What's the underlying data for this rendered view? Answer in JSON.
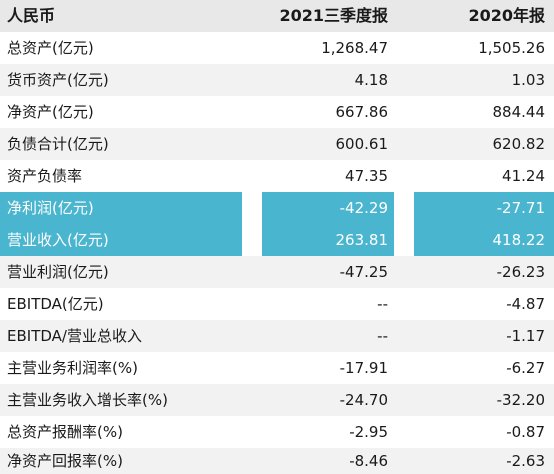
{
  "header": {
    "label": "人民币",
    "col1": "2021三季度报",
    "col2": "2020年报"
  },
  "rows": [
    {
      "label": "总资产(亿元)",
      "v1": "1,268.47",
      "v2": "1,505.26"
    },
    {
      "label": "货币资产(亿元)",
      "v1": "4.18",
      "v2": "1.03"
    },
    {
      "label": "净资产(亿元)",
      "v1": "667.86",
      "v2": "884.44"
    },
    {
      "label": "负债合计(亿元)",
      "v1": "600.61",
      "v2": "620.82"
    },
    {
      "label": "资产负债率",
      "v1": "47.35",
      "v2": "41.24"
    },
    {
      "label": "净利润(亿元)",
      "v1": "-42.29",
      "v2": "-27.71"
    },
    {
      "label": "营业收入(亿元)",
      "v1": "263.81",
      "v2": "418.22"
    },
    {
      "label": "营业利润(亿元)",
      "v1": "-47.25",
      "v2": "-26.23"
    },
    {
      "label": "EBITDA(亿元)",
      "v1": "--",
      "v2": "-4.87"
    },
    {
      "label": "EBITDA/营业总收入",
      "v1": "--",
      "v2": "-1.17"
    },
    {
      "label": "主营业务利润率(%)",
      "v1": "-17.91",
      "v2": "-6.27"
    },
    {
      "label": "主营业务收入增长率(%)",
      "v1": "-24.70",
      "v2": "-32.20"
    },
    {
      "label": "总资产报酬率(%)",
      "v1": "-2.95",
      "v2": "-0.87"
    },
    {
      "label": "净资产回报率(%)",
      "v1": "-8.46",
      "v2": "-2.63"
    }
  ],
  "colors": {
    "highlight": "#4ab5cf",
    "stripe": "#f2f2f2",
    "header": "#e8e8e8"
  }
}
